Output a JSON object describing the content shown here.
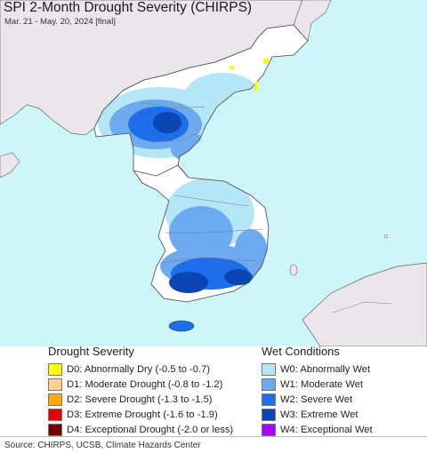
{
  "title": "SPI 2-Month Drought Severity (CHIRPS)",
  "subtitle": "Mar. 21 - May. 20, 2024 [final]",
  "legend_drought": {
    "title": "Drought Severity",
    "items": [
      {
        "label": "D0: Abnormally Dry (-0.5 to -0.7)",
        "color": "#ffff00"
      },
      {
        "label": "D1: Moderate Drought (-0.8 to -1.2)",
        "color": "#fcd38b"
      },
      {
        "label": "D2: Severe Drought (-1.3 to -1.5)",
        "color": "#ffaa00"
      },
      {
        "label": "D3: Extreme Drought (-1.6 to -1.9)",
        "color": "#e60000"
      },
      {
        "label": "D4: Exceptional Drought (-2.0 or less)",
        "color": "#730000"
      }
    ]
  },
  "legend_wet": {
    "title": "Wet Conditions",
    "items": [
      {
        "label": "W0: Abnormally Wet",
        "color": "#b4e6f7"
      },
      {
        "label": "W1: Moderate Wet",
        "color": "#6eaaf0"
      },
      {
        "label": "W2: Severe Wet",
        "color": "#1e6eeb"
      },
      {
        "label": "W3: Extreme Wet",
        "color": "#0a46b4"
      },
      {
        "label": "W4: Exceptional Wet",
        "color": "#aa00ff"
      }
    ]
  },
  "source": "Source: CHIRPS, UCSB, Climate Hazards Center",
  "colors": {
    "sea": "#ccf6f8",
    "land_outside": "#ebe6ec",
    "land_normal": "#ffffff",
    "border": "#555555"
  }
}
